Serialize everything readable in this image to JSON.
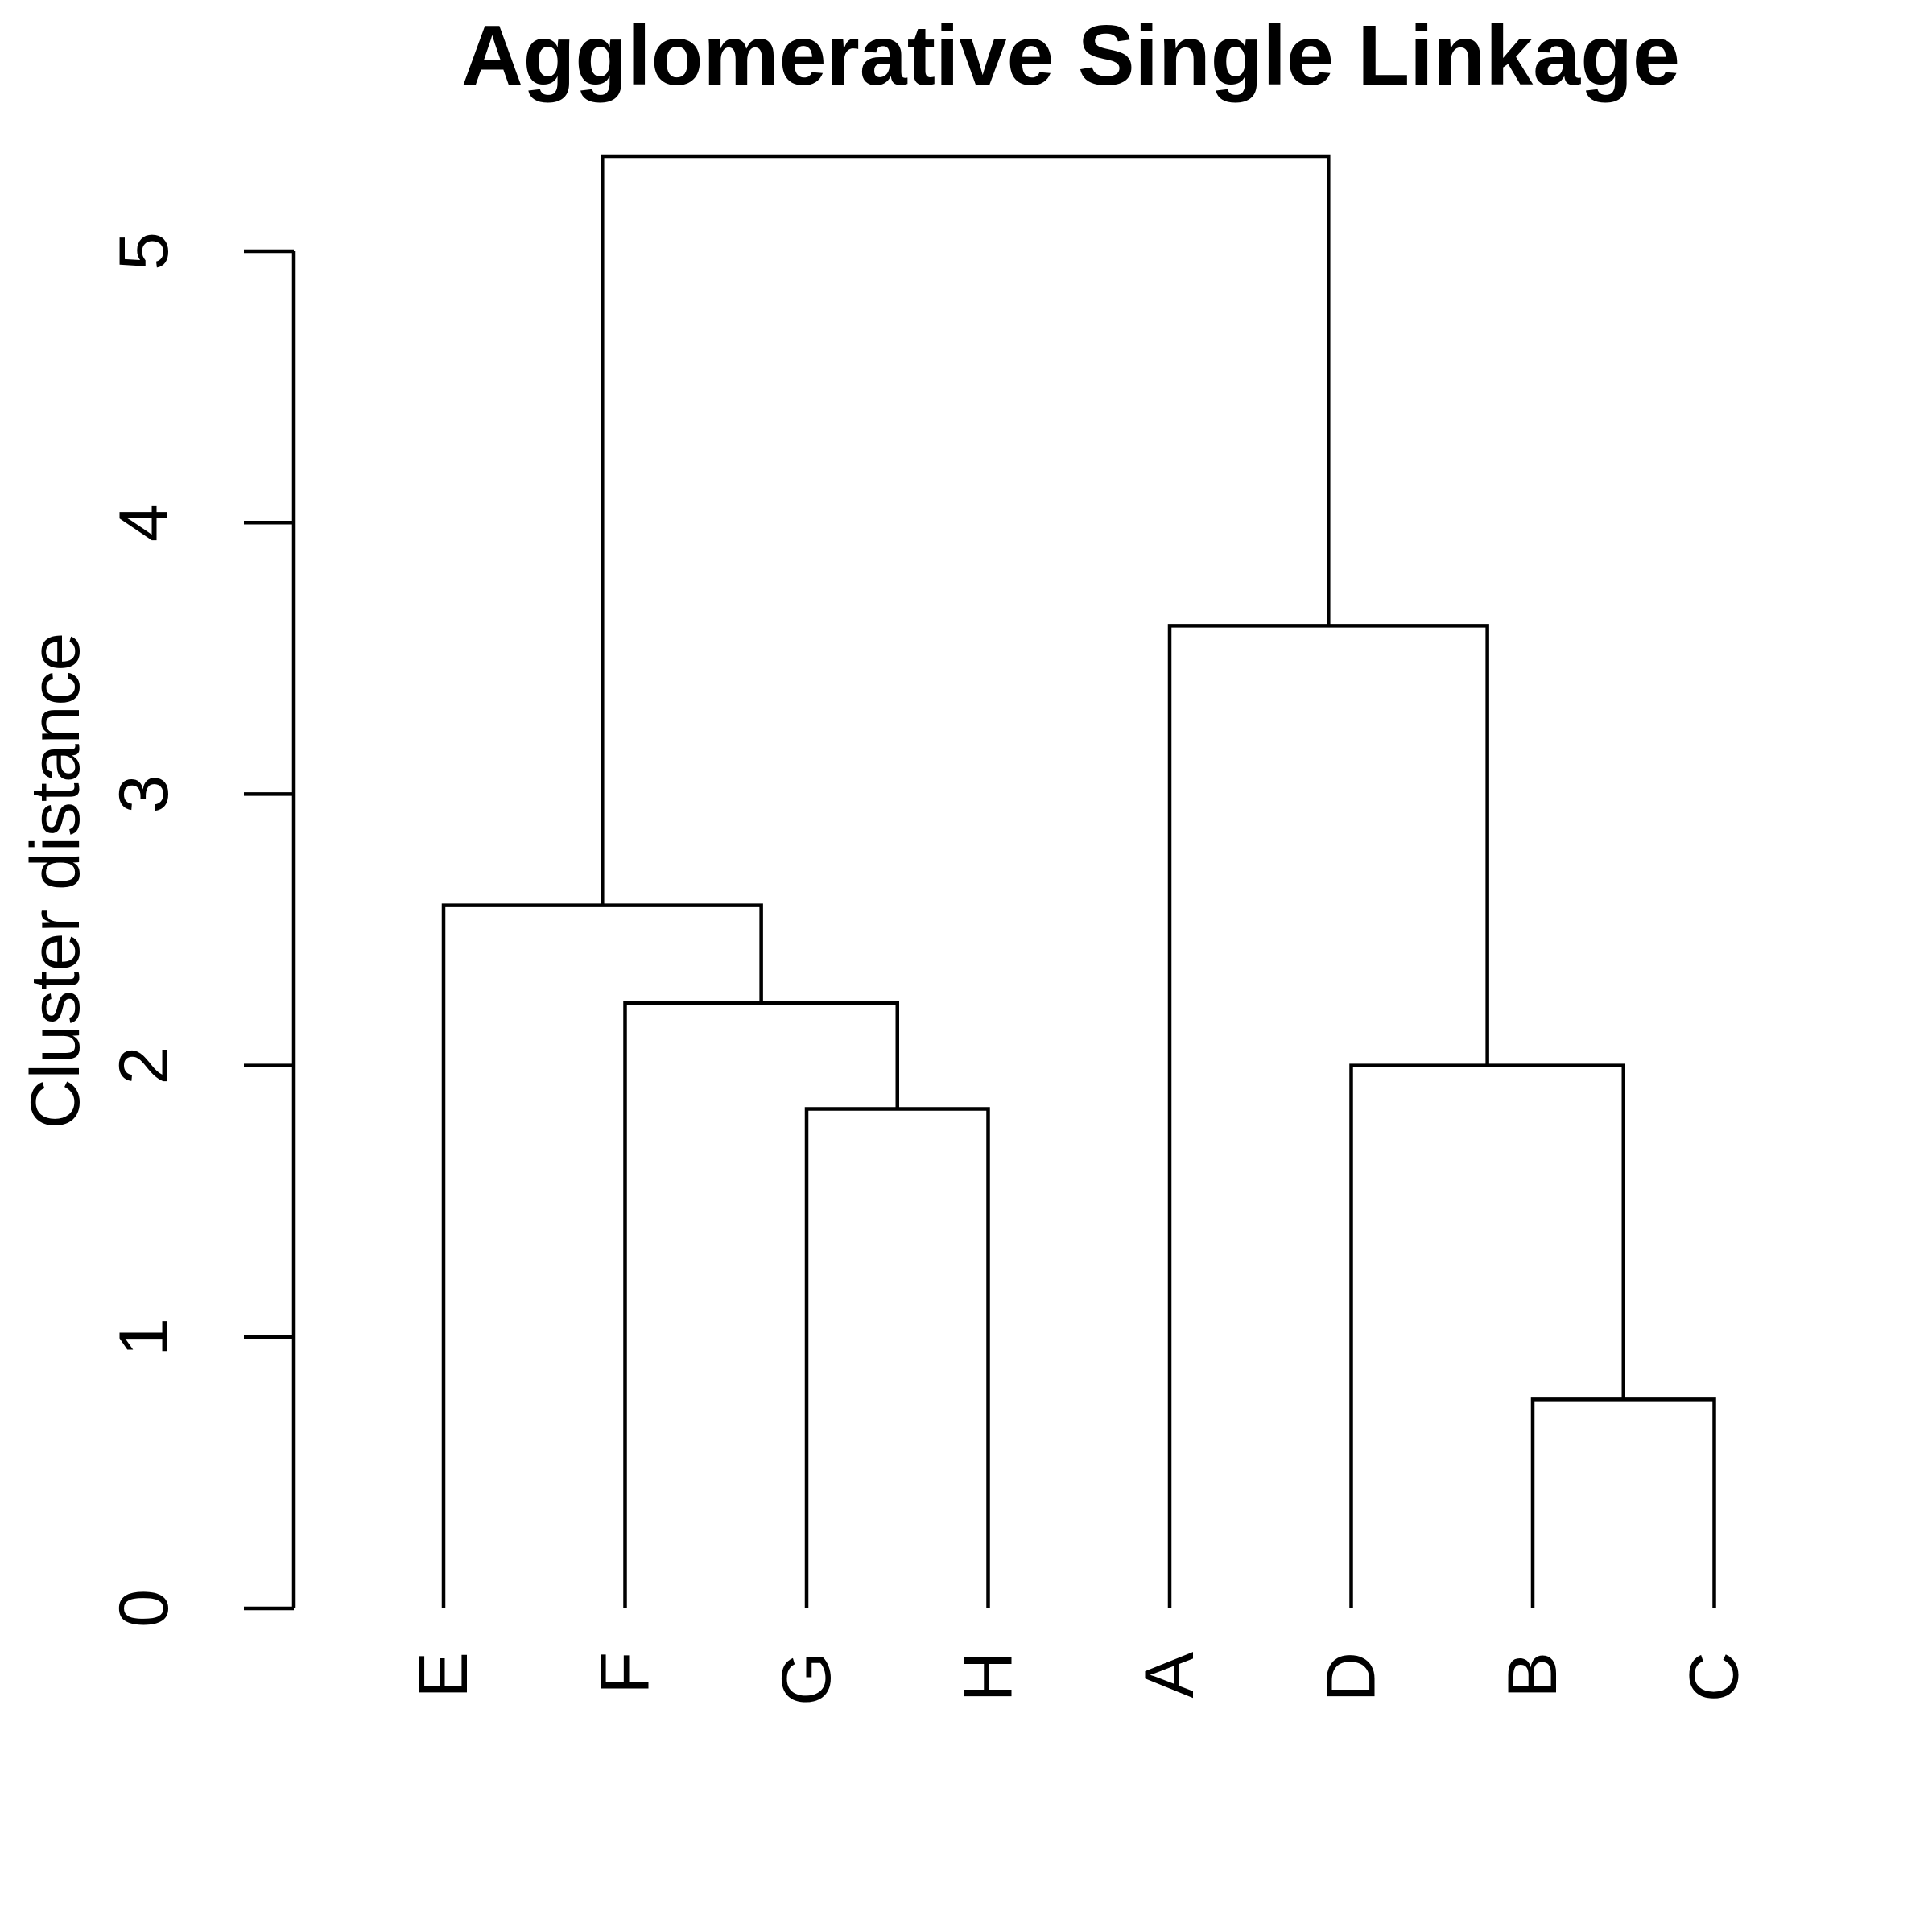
{
  "chart_data": {
    "type": "dendrogram",
    "title": "Agglomerative Single Linkage",
    "xlabel": "",
    "ylabel": "Cluster distance",
    "ylim": [
      0,
      5
    ],
    "yticks": [
      0,
      1,
      2,
      3,
      4,
      5
    ],
    "leaves": [
      "E",
      "F",
      "G",
      "H",
      "A",
      "D",
      "B",
      "C"
    ],
    "merges": [
      {
        "id": "m1",
        "left": "B",
        "right": "C",
        "height": 0.77
      },
      {
        "id": "m2",
        "left": "G",
        "right": "H",
        "height": 1.84
      },
      {
        "id": "m3",
        "left": "D",
        "right": "m1",
        "height": 2.0
      },
      {
        "id": "m4",
        "left": "F",
        "right": "m2",
        "height": 2.23
      },
      {
        "id": "m5",
        "left": "E",
        "right": "m4",
        "height": 2.59
      },
      {
        "id": "m6",
        "left": "A",
        "right": "m3",
        "height": 3.62
      },
      {
        "id": "m7",
        "left": "m5",
        "right": "m6",
        "height": 5.35
      }
    ],
    "grid": false,
    "line_color": "#000000"
  }
}
